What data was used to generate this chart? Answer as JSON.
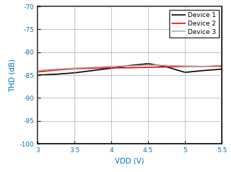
{
  "title": "",
  "xlabel": "VDD (V)",
  "ylabel": "THD (dB)",
  "xlim": [
    3,
    5.5
  ],
  "ylim": [
    -100,
    -70
  ],
  "xticks": [
    3,
    3.5,
    4,
    4.5,
    5,
    5.5
  ],
  "yticks": [
    -100,
    -95,
    -90,
    -85,
    -80,
    -75,
    -70
  ],
  "device1": {
    "x": [
      3.0,
      3.25,
      3.5,
      3.75,
      4.0,
      4.25,
      4.5,
      4.75,
      5.0,
      5.25,
      5.5
    ],
    "y": [
      -85.0,
      -84.8,
      -84.5,
      -84.0,
      -83.5,
      -82.9,
      -82.5,
      -83.2,
      -84.4,
      -84.0,
      -83.7
    ],
    "color": "#000000",
    "linewidth": 1.2,
    "label": "Device 1"
  },
  "device2": {
    "x": [
      3.0,
      3.25,
      3.5,
      3.75,
      4.0,
      4.25,
      4.5,
      4.75,
      5.0,
      5.25,
      5.5
    ],
    "y": [
      -84.3,
      -83.9,
      -83.6,
      -83.5,
      -83.4,
      -83.4,
      -83.3,
      -83.2,
      -83.1,
      -83.1,
      -83.0
    ],
    "color": "#ff0000",
    "linewidth": 1.2,
    "label": "Device 2"
  },
  "device3": {
    "x": [
      3.0,
      3.25,
      3.5,
      3.75,
      4.0,
      4.25,
      4.5,
      4.75,
      5.0,
      5.25,
      5.5
    ],
    "y": [
      -84.0,
      -83.7,
      -83.5,
      -83.3,
      -83.1,
      -83.0,
      -82.8,
      -82.9,
      -83.0,
      -83.1,
      -83.2
    ],
    "color": "#aaaaaa",
    "linewidth": 1.2,
    "label": "Device 3"
  },
  "legend_fontsize": 6.5,
  "tick_fontsize": 6.5,
  "xlabel_fontsize": 7.5,
  "ylabel_fontsize": 7.5,
  "tick_color": "#0070c0",
  "label_color": "#0070c0",
  "grid_color": "#aaaaaa",
  "background_color": "#ffffff",
  "spine_color": "#000000"
}
